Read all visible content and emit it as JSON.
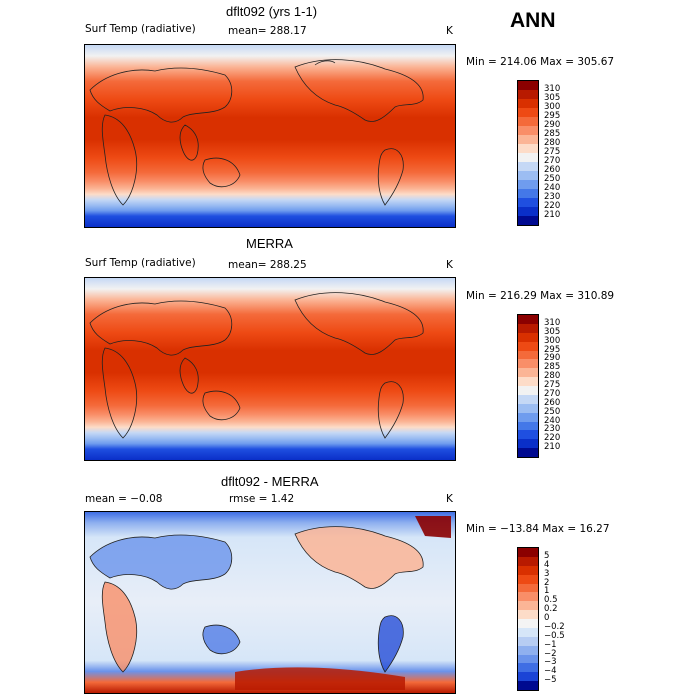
{
  "season": "ANN",
  "panels": [
    {
      "title": "dflt092 (yrs 1-1)",
      "variable": "Surf Temp (radiative)",
      "stat_text": "mean= 288.17",
      "units": "K",
      "minmax": "Min = 214.06 Max = 305.67",
      "colorbar": {
        "labels": [
          "310",
          "305",
          "300",
          "295",
          "290",
          "285",
          "280",
          "275",
          "270",
          "260",
          "250",
          "240",
          "230",
          "220",
          "210"
        ],
        "colors": [
          "#8b0000",
          "#b81a00",
          "#d93000",
          "#ee4a14",
          "#f46a3a",
          "#f98e68",
          "#fbb596",
          "#fddcc8",
          "#f2f2f2",
          "#c5d8f5",
          "#9cbdf2",
          "#6f9cee",
          "#4478e8",
          "#1f4fe0",
          "#0a2fc8",
          "#000a90"
        ]
      }
    },
    {
      "title": "MERRA",
      "variable": "Surf Temp (radiative)",
      "stat_text": "mean= 288.25",
      "units": "K",
      "minmax": "Min = 216.29 Max = 310.89",
      "colorbar": {
        "labels": [
          "310",
          "305",
          "300",
          "295",
          "290",
          "285",
          "280",
          "275",
          "270",
          "260",
          "250",
          "240",
          "230",
          "220",
          "210"
        ],
        "colors": [
          "#8b0000",
          "#b81a00",
          "#d93000",
          "#ee4a14",
          "#f46a3a",
          "#f98e68",
          "#fbb596",
          "#fddcc8",
          "#f2f2f2",
          "#c5d8f5",
          "#9cbdf2",
          "#6f9cee",
          "#4478e8",
          "#1f4fe0",
          "#0a2fc8",
          "#000a90"
        ]
      }
    },
    {
      "title": "dflt092 - MERRA",
      "mean_text": "mean =  −0.08",
      "rmse_text": "rmse =   1.42",
      "units": "K",
      "minmax": "Min = −13.84 Max =  16.27",
      "colorbar": {
        "labels": [
          "5",
          "4",
          "3",
          "2",
          "1",
          "0.5",
          "0.2",
          "0",
          "−0.2",
          "−0.5",
          "−1",
          "−2",
          "−3",
          "−4",
          "−5"
        ],
        "colors": [
          "#8b0000",
          "#b81a00",
          "#d93000",
          "#ee4a14",
          "#f46a3a",
          "#f98e68",
          "#fbb596",
          "#fddcc8",
          "#f4f4f4",
          "#d6e6f8",
          "#b7cdf3",
          "#8fb0ef",
          "#6a93eb",
          "#3f6ee4",
          "#1b44d6",
          "#000a90"
        ]
      }
    }
  ],
  "chart_data": [
    {
      "type": "heatmap",
      "title": "dflt092 (yrs 1-1)",
      "subtitle": "Surf Temp (radiative)",
      "units": "K",
      "mean": 288.17,
      "min": 214.06,
      "max": 305.67,
      "contour_levels": [
        210,
        220,
        230,
        240,
        250,
        260,
        270,
        275,
        280,
        285,
        290,
        295,
        300,
        305,
        310
      ]
    },
    {
      "type": "heatmap",
      "title": "MERRA",
      "subtitle": "Surf Temp (radiative)",
      "units": "K",
      "mean": 288.25,
      "min": 216.29,
      "max": 310.89,
      "contour_levels": [
        210,
        220,
        230,
        240,
        250,
        260,
        270,
        275,
        280,
        285,
        290,
        295,
        300,
        305,
        310
      ]
    },
    {
      "type": "heatmap",
      "title": "dflt092 - MERRA",
      "units": "K",
      "mean": -0.08,
      "rmse": 1.42,
      "min": -13.84,
      "max": 16.27,
      "contour_levels": [
        -5,
        -4,
        -3,
        -2,
        -1,
        -0.5,
        -0.2,
        0,
        0.2,
        0.5,
        1,
        2,
        3,
        4,
        5
      ]
    }
  ]
}
